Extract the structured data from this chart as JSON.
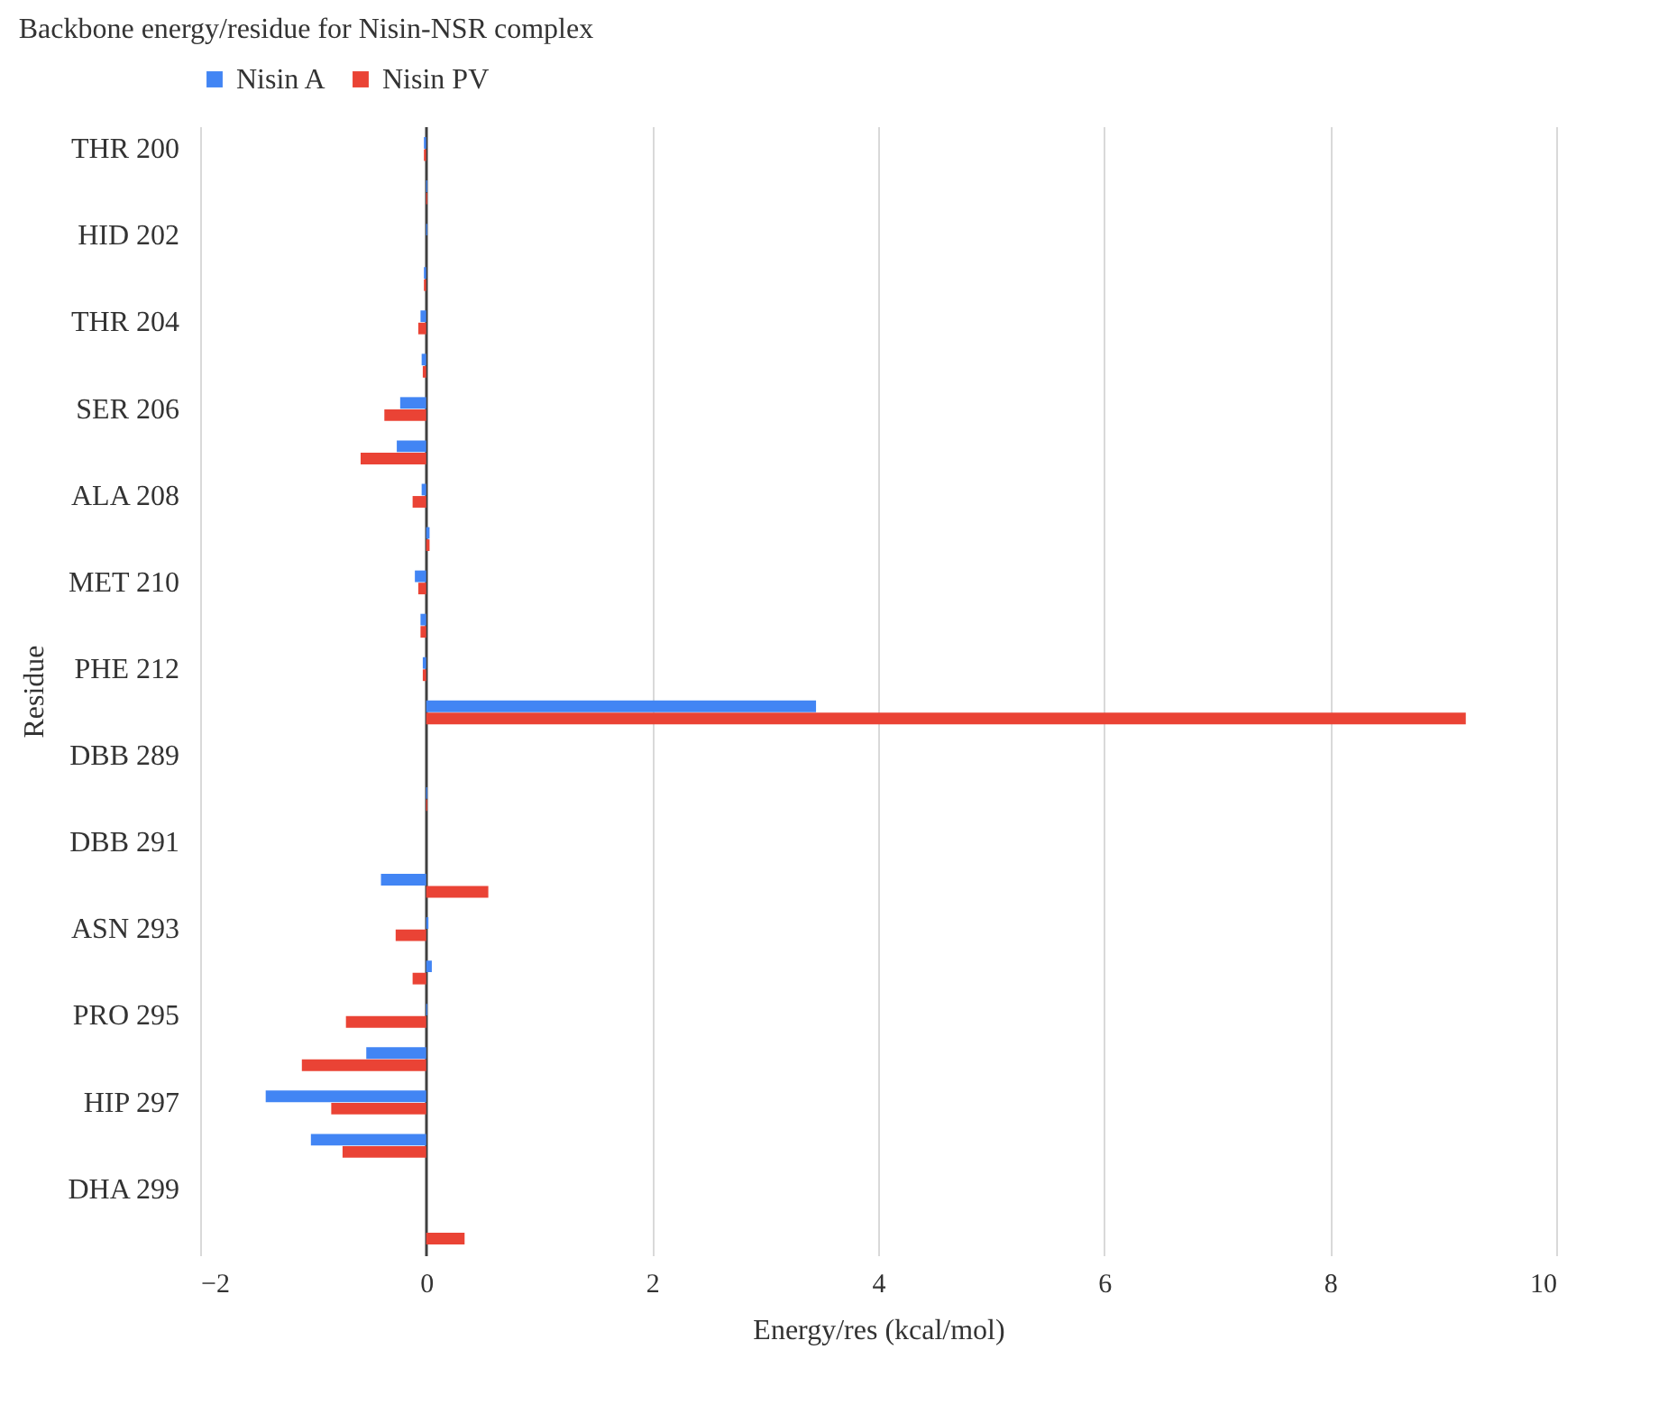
{
  "chart_data": {
    "type": "bar",
    "orientation": "horizontal",
    "title": "Backbone energy/residue for Nisin-NSR complex",
    "xlabel": "Energy/res (kcal/mol)",
    "ylabel": "Residue",
    "categories": [
      "THR 200",
      null,
      "HID 202",
      null,
      "THR 204",
      null,
      "SER 206",
      null,
      "ALA 208",
      null,
      "MET 210",
      null,
      "PHE 212",
      null,
      "DBB 289",
      null,
      "DBB 291",
      null,
      "ASN 293",
      null,
      "PRO 295",
      null,
      "HIP 297",
      null,
      "DHA 299",
      null
    ],
    "series": [
      {
        "name": "Nisin A",
        "color": "#4285f4",
        "values": [
          -0.02,
          0.01,
          0.01,
          -0.02,
          -0.05,
          -0.04,
          -0.23,
          -0.26,
          -0.04,
          0.03,
          -0.1,
          -0.05,
          -0.03,
          3.45,
          0,
          0.01,
          0,
          -0.4,
          0.02,
          0.05,
          0.01,
          -0.53,
          -1.42,
          -1.02,
          0,
          0
        ]
      },
      {
        "name": "Nisin PV",
        "color": "#ea4335",
        "values": [
          -0.02,
          0.01,
          0,
          -0.02,
          -0.07,
          -0.03,
          -0.37,
          -0.58,
          -0.12,
          0.03,
          -0.07,
          -0.05,
          -0.03,
          9.2,
          0,
          0.01,
          0,
          0.55,
          -0.27,
          -0.12,
          -0.71,
          -1.1,
          -0.84,
          -0.74,
          0,
          0.34
        ]
      }
    ],
    "xlim": [
      -2,
      10
    ],
    "xticks": [
      -2,
      0,
      2,
      4,
      6,
      8,
      10
    ],
    "grid": "x",
    "legend": "top"
  }
}
